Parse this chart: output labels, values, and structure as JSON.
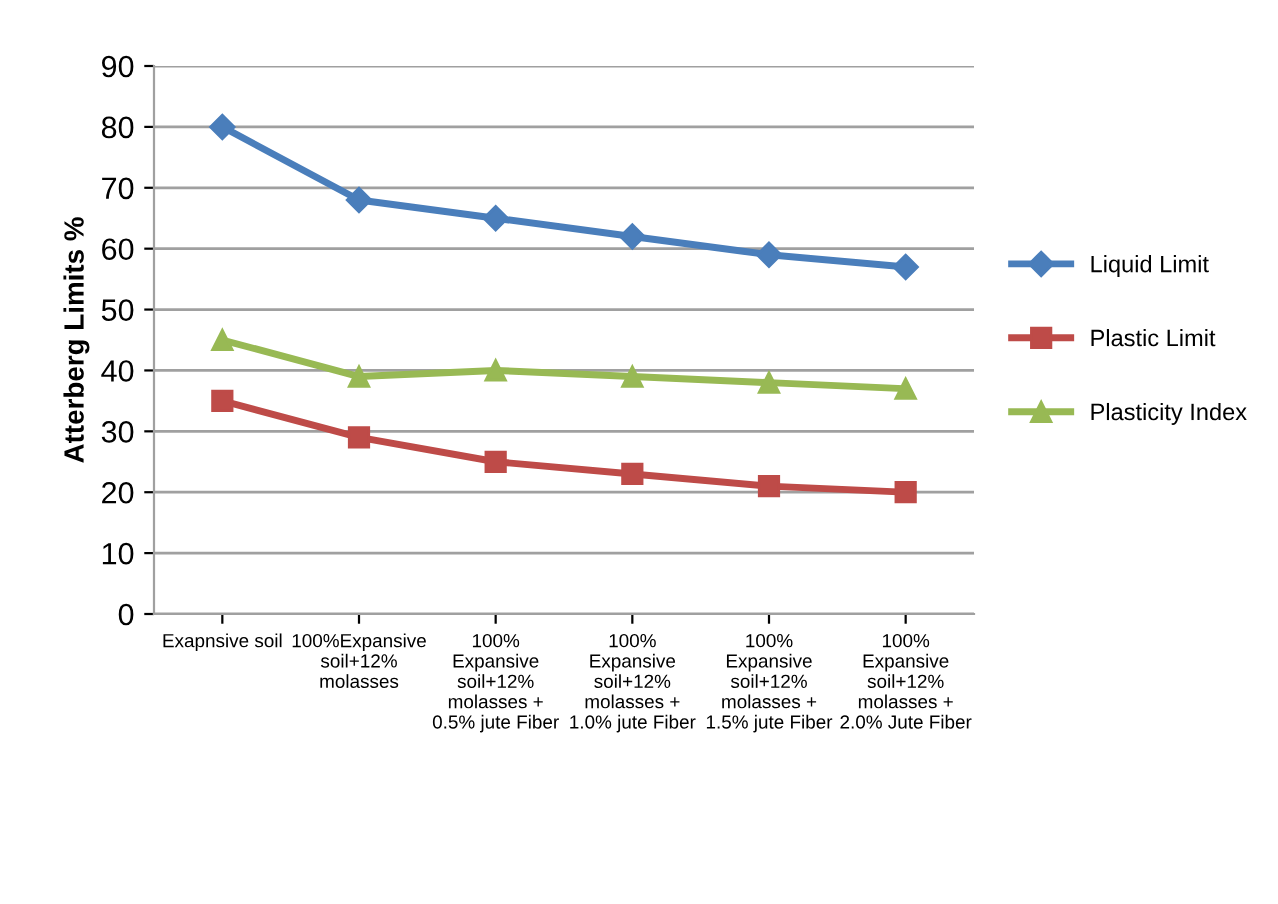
{
  "chart_data": {
    "type": "line",
    "ylabel": "Atterberg Limits %",
    "categories": [
      "Exapnsive soil",
      "100%Expansive\nsoil+12%\nmolasses",
      "100%\nExpansive\nsoil+12%\nmolasses +\n0.5% jute Fiber",
      "100%\nExpansive\nsoil+12%\nmolasses +\n1.0% jute Fiber",
      "100%\nExpansive\nsoil+12%\nmolasses +\n1.5% jute Fiber",
      "100%\nExpansive\nsoil+12%\nmolasses +\n2.0% Jute Fiber"
    ],
    "series": [
      {
        "name": "Liquid Limit",
        "color": "#4a7ebb",
        "marker": "diamond",
        "values": [
          80,
          68,
          65,
          62,
          59,
          57
        ]
      },
      {
        "name": "Plastic Limit",
        "color": "#be4b48",
        "marker": "square",
        "values": [
          35,
          29,
          25,
          23,
          21,
          20
        ]
      },
      {
        "name": "Plasticity Index",
        "color": "#98b954",
        "marker": "triangle",
        "values": [
          45,
          39,
          40,
          39,
          38,
          37
        ]
      }
    ],
    "ylim": [
      0,
      90
    ],
    "yticks": [
      0,
      10,
      20,
      30,
      40,
      50,
      60,
      70,
      80,
      90
    ],
    "grid": "y",
    "legend": "right"
  }
}
